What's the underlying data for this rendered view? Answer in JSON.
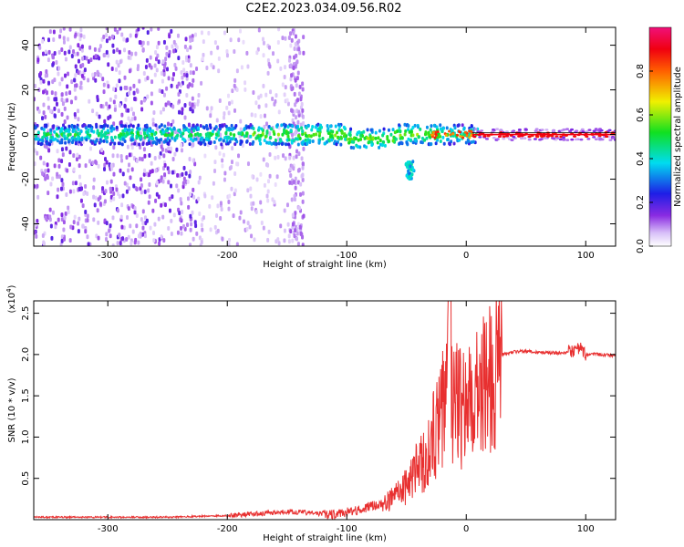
{
  "title": "C2E2.2023.034.09.56.R02",
  "colors": {
    "signal_red": "#e83030",
    "spectrum_purple": "#7a1ee8",
    "spectrum_light": "#c9a8f2"
  },
  "chart_data": [
    {
      "type": "heatmap",
      "xlabel": "Height of straight line (km)",
      "ylabel": "Frequency (Hz)",
      "xlim": [
        -362,
        125
      ],
      "ylim": [
        -50,
        48
      ],
      "xticks": [
        -300,
        -200,
        -100,
        0,
        100
      ],
      "xtick_labels": [
        "-300",
        "-200",
        "-100",
        "0",
        "100"
      ],
      "yticks": [
        -40,
        -20,
        0,
        20,
        40
      ],
      "ytick_labels": [
        "-40",
        "-20",
        "0",
        "20",
        "40"
      ],
      "colorbar": {
        "label": "Normalized spectral amplitude",
        "range": [
          0,
          1
        ],
        "ticks": [
          0.0,
          0.2,
          0.4,
          0.6,
          0.8
        ],
        "tick_labels": [
          "0.0",
          "0.2",
          "0.4",
          "0.6",
          "0.8"
        ],
        "colormap": "rainbow (white-purple-blue-cyan-green-yellow-red-magenta)"
      },
      "features": {
        "ridge_center_hz": 0,
        "noise_band_x": [
          -362,
          -235
        ],
        "vertical_stripes_x": [
          -225,
          -140
        ],
        "dip_x": -47,
        "dip_frequency_hz": -16,
        "steady_segment_x": [
          5,
          125
        ]
      }
    },
    {
      "type": "line",
      "xlabel": "Height of straight line (km)",
      "ylabel": "SNR (10 * v/v)",
      "y_multiplier_label": "(x10",
      "y_multiplier_exp": "4",
      "y_multiplier_close": ")",
      "xlim": [
        -362,
        125
      ],
      "ylim": [
        0,
        2.65
      ],
      "xticks": [
        -300,
        -200,
        -100,
        0,
        100
      ],
      "xtick_labels": [
        "-300",
        "-200",
        "-100",
        "0",
        "100"
      ],
      "yticks": [
        0.5,
        1.0,
        1.5,
        2.0,
        2.5
      ],
      "ytick_labels": [
        "0.5",
        "1.0",
        "1.5",
        "2.0",
        "2.5"
      ],
      "series": [
        {
          "color": "#e83030",
          "x": [
            -362,
            -300,
            -250,
            -200,
            -175,
            -150,
            -130,
            -110,
            -90,
            -70,
            -60,
            -50,
            -45,
            -40,
            -35,
            -30,
            -25,
            -20,
            -15,
            -10,
            -5,
            0,
            5,
            10,
            15,
            20,
            25,
            30,
            40,
            50,
            60,
            70,
            80,
            90,
            95,
            100,
            110,
            125
          ],
          "values": [
            0.03,
            0.03,
            0.03,
            0.05,
            0.07,
            0.1,
            0.08,
            0.06,
            0.12,
            0.2,
            0.3,
            0.45,
            0.6,
            0.75,
            0.8,
            1.0,
            1.25,
            1.5,
            1.75,
            1.6,
            1.5,
            1.55,
            1.6,
            1.7,
            1.8,
            1.92,
            1.98,
            2.0,
            2.03,
            2.04,
            2.03,
            2.02,
            2.02,
            2.05,
            2.08,
            2.0,
            2.0,
            1.99
          ]
        }
      ]
    }
  ]
}
